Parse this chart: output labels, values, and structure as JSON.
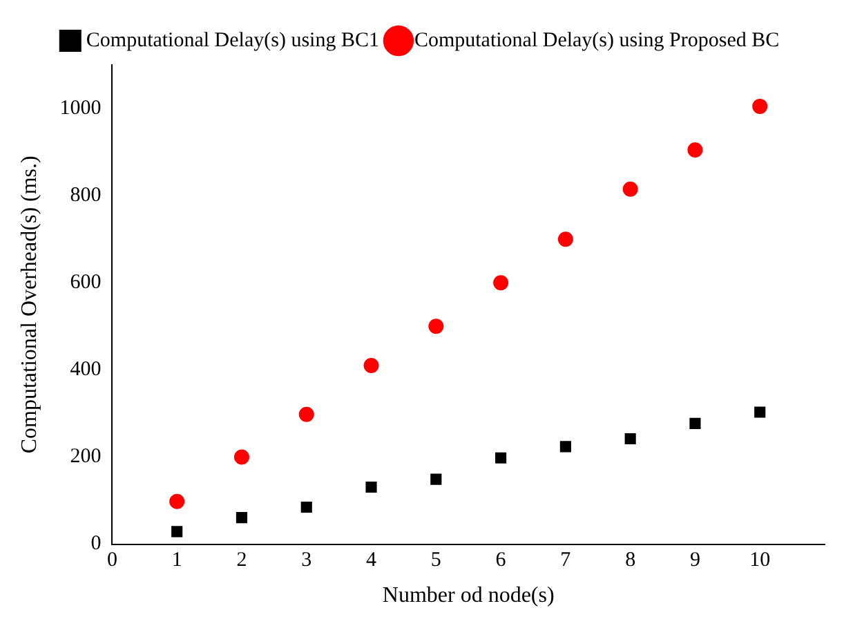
{
  "chart_data": {
    "type": "scatter",
    "xlabel": "Number od node(s)",
    "ylabel": "Computational Overhead(s) (ms.)",
    "x": [
      1,
      2,
      3,
      4,
      5,
      6,
      7,
      8,
      9,
      10
    ],
    "xlim": [
      0,
      11
    ],
    "xticks": [
      0,
      1,
      2,
      3,
      4,
      5,
      6,
      7,
      8,
      9,
      10
    ],
    "ylim": [
      0,
      1100
    ],
    "yticks": [
      0,
      200,
      400,
      600,
      800,
      1000
    ],
    "grid": false,
    "legend": "top",
    "series": [
      {
        "name": "Computational Delay(s) using BC1",
        "color": "#000000",
        "marker": "square",
        "values": [
          29,
          61,
          85,
          131,
          149,
          198,
          224,
          242,
          277,
          303
        ]
      },
      {
        "name": "Computational Delay(s) using Proposed BC",
        "color": "#ff0000",
        "marker": "circle",
        "values": [
          98,
          200,
          298,
          410,
          500,
          600,
          700,
          815,
          905,
          1005
        ]
      }
    ]
  }
}
